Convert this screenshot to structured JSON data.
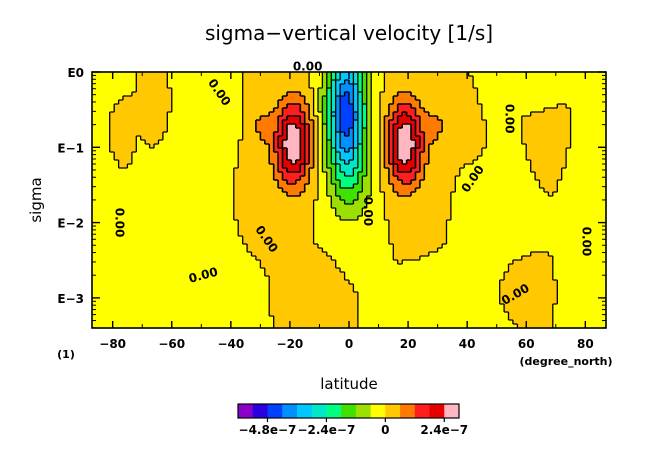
{
  "chart_data": {
    "type": "heatmap",
    "title": "sigma−vertical velocity [1/s]",
    "xlabel": "latitude",
    "ylabel": "sigma",
    "x_unit": "(degree_north)",
    "y_unit": "(1)",
    "x_ticks": [
      "−80",
      "−60",
      "−40",
      "−20",
      "0",
      "20",
      "40",
      "60",
      "80"
    ],
    "x_tick_values": [
      -80,
      -60,
      -40,
      -20,
      0,
      20,
      40,
      60,
      80
    ],
    "xlim": [
      -87,
      87
    ],
    "y_ticks": [
      "E−3",
      "E−2",
      "E−1",
      "E0"
    ],
    "y_tick_values": [
      -3,
      -2,
      -1,
      0
    ],
    "y_scale": "log",
    "ylim": [
      -3.4,
      0
    ],
    "contour_labels": [
      {
        "text": "0.00",
        "lat": -49,
        "logsig": -2.75,
        "angle": -15
      },
      {
        "text": "0.00",
        "lat": -79,
        "logsig": -2.0,
        "angle": 90
      },
      {
        "text": "0.00",
        "lat": -29,
        "logsig": -2.25,
        "angle": 55
      },
      {
        "text": "0.00",
        "lat": -45,
        "logsig": -0.3,
        "angle": 55
      },
      {
        "text": "0.00",
        "lat": -14,
        "logsig": 0.02,
        "angle": 0
      },
      {
        "text": "0.00",
        "lat": 5,
        "logsig": -1.85,
        "angle": 90
      },
      {
        "text": "0.00",
        "lat": 57,
        "logsig": -3.0,
        "angle": -30
      },
      {
        "text": "0.00",
        "lat": 79,
        "logsig": -2.25,
        "angle": 90
      },
      {
        "text": "0.00",
        "lat": 43,
        "logsig": -1.45,
        "angle": -55
      },
      {
        "text": "0.00",
        "lat": 53,
        "logsig": -0.62,
        "angle": 90
      }
    ],
    "colorbar": {
      "colors": [
        "#8a00c8",
        "#2a00e0",
        "#0040ff",
        "#0090ff",
        "#00c8ff",
        "#00e8c8",
        "#00ff80",
        "#40e000",
        "#9be000",
        "#ffff00",
        "#ffc800",
        "#ff7a00",
        "#ff1e1e",
        "#e60000",
        "#ffb6c1"
      ],
      "tick_labels": [
        "−4.8e−7",
        "−2.4e−7",
        "0",
        "2.4e−7"
      ],
      "tick_values": [
        -4.8e-07,
        -2.4e-07,
        0,
        2.4e-07
      ],
      "min": -6e-07,
      "max": 3e-07
    }
  }
}
